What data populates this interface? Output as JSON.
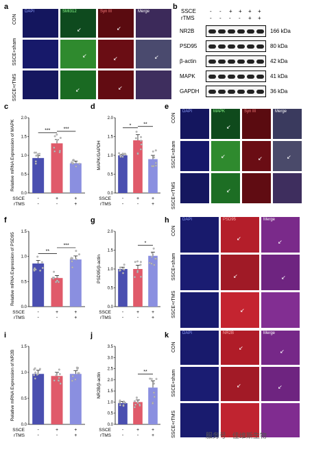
{
  "panels": {
    "a": "a",
    "b": "b",
    "c": "c",
    "d": "d",
    "e": "e",
    "f": "f",
    "g": "g",
    "h": "h",
    "i": "i",
    "j": "j",
    "k": "k"
  },
  "panel_a": {
    "columns": [
      "DAPI",
      "SMI312",
      "Syn III",
      "Merge"
    ],
    "rows": [
      "CON",
      "SSCE+sham",
      "SSCE+rTMS"
    ]
  },
  "panel_b": {
    "header_rows": [
      {
        "label": "SSCE",
        "signs": [
          "-",
          "-",
          "+",
          "+",
          "+",
          "+"
        ]
      },
      {
        "label": "rTMS",
        "signs": [
          "-",
          "-",
          "-",
          "-",
          "+",
          "+"
        ]
      }
    ],
    "blots": [
      {
        "name": "NR2B",
        "kda": "166 kDa"
      },
      {
        "name": "PSD95",
        "kda": "80 kDa"
      },
      {
        "name": "β-actin",
        "kda": "42 kDa"
      },
      {
        "name": "MAPK",
        "kda": "41 kDa"
      },
      {
        "name": "GAPDH",
        "kda": "36 kDa"
      }
    ]
  },
  "panel_e": {
    "columns": [
      "DAPI",
      "MAPK",
      "Syn III",
      "Merge"
    ],
    "rows": [
      "CON",
      "SSCE+sham",
      "SSCE+rTMS"
    ]
  },
  "panel_h": {
    "columns": [
      "DAPI",
      "PSD95",
      "Merge"
    ],
    "rows": [
      "CON",
      "SSCE+sham",
      "SSCE+rTMS"
    ]
  },
  "panel_k": {
    "columns": [
      "DAPI",
      "NR2B",
      "Merge"
    ],
    "rows": [
      "CON",
      "SSCE+sham",
      "SSCE+rTMS"
    ]
  },
  "group_signs": {
    "ssce_label": "SSCE",
    "ssce": [
      "-",
      "+",
      "+"
    ],
    "rtms_label": "rTMS",
    "rtms": [
      "-",
      "-",
      "+"
    ]
  },
  "colors": {
    "con": "#4a4fb0",
    "sham": "#e05a6a",
    "rtms": "#8a8fe0"
  },
  "chart_data": [
    {
      "id": "c",
      "type": "bar",
      "ylabel": "Relative mRNA Expression of MAPK",
      "categories": [
        "CON",
        "SSCE+sham",
        "SSCE+rTMS"
      ],
      "values": [
        0.93,
        1.32,
        0.79
      ],
      "errors": [
        0.06,
        0.1,
        0.06
      ],
      "ylim": [
        0,
        2.0
      ],
      "yticks": [
        "0.0",
        "0.5",
        "1.0",
        "1.5",
        "2.0"
      ],
      "sig": [
        {
          "from": 0,
          "to": 1,
          "text": "***"
        },
        {
          "from": 1,
          "to": 2,
          "text": "***"
        }
      ]
    },
    {
      "id": "d",
      "type": "bar",
      "ylabel": "MAPK/GAPDH",
      "categories": [
        "CON",
        "SSCE+sham",
        "SSCE+rTMS"
      ],
      "values": [
        1.0,
        1.4,
        0.9
      ],
      "errors": [
        0.03,
        0.15,
        0.1
      ],
      "ylim": [
        0,
        2.0
      ],
      "yticks": [
        "0.0",
        "0.5",
        "1.0",
        "1.5",
        "2.0"
      ],
      "sig": [
        {
          "from": 0,
          "to": 1,
          "text": "*"
        },
        {
          "from": 1,
          "to": 2,
          "text": "**"
        }
      ]
    },
    {
      "id": "f",
      "type": "bar",
      "ylabel": "Relative mRNA Expression of PSD95",
      "categories": [
        "CON",
        "SSCE+sham",
        "SSCE+rTMS"
      ],
      "values": [
        0.86,
        0.57,
        0.94
      ],
      "errors": [
        0.06,
        0.05,
        0.07
      ],
      "ylim": [
        0,
        1.5
      ],
      "yticks": [
        "0.0",
        "0.5",
        "1.0",
        "1.5"
      ],
      "sig": [
        {
          "from": 0,
          "to": 1,
          "text": "**"
        },
        {
          "from": 1,
          "to": 2,
          "text": "***"
        }
      ]
    },
    {
      "id": "g",
      "type": "bar",
      "ylabel": "PSD95/β-actin",
      "categories": [
        "CON",
        "SSCE+sham",
        "SSCE+rTMS"
      ],
      "values": [
        1.0,
        1.0,
        1.35
      ],
      "errors": [
        0.05,
        0.1,
        0.1
      ],
      "ylim": [
        0,
        2.0
      ],
      "yticks": [
        "0.0",
        "0.5",
        "1.0",
        "1.5",
        "2.0"
      ],
      "sig": [
        {
          "from": 1,
          "to": 2,
          "text": "*"
        }
      ]
    },
    {
      "id": "i",
      "type": "bar",
      "ylabel": "Relative mRNA Expression of NR2B",
      "categories": [
        "CON",
        "SSCE+sham",
        "SSCE+rTMS"
      ],
      "values": [
        0.97,
        0.93,
        0.97
      ],
      "errors": [
        0.07,
        0.07,
        0.06
      ],
      "ylim": [
        0,
        1.5
      ],
      "yticks": [
        "0.0",
        "0.5",
        "1.0",
        "1.5"
      ],
      "sig": []
    },
    {
      "id": "j",
      "type": "bar",
      "ylabel": "NR2B/β-actin",
      "categories": [
        "CON",
        "SSCE+sham",
        "SSCE+rTMS"
      ],
      "values": [
        0.95,
        1.0,
        1.65
      ],
      "errors": [
        0.08,
        0.1,
        0.3
      ],
      "ylim": [
        0,
        3.5
      ],
      "yticks": [
        "0.0",
        "0.5",
        "1.0",
        "1.5",
        "2.0",
        "2.5",
        "3.0",
        "3.5"
      ],
      "sig": [
        {
          "from": 1,
          "to": 2,
          "text": "**"
        }
      ]
    }
  ],
  "watermark": "服务号 · 佳维斯生物"
}
